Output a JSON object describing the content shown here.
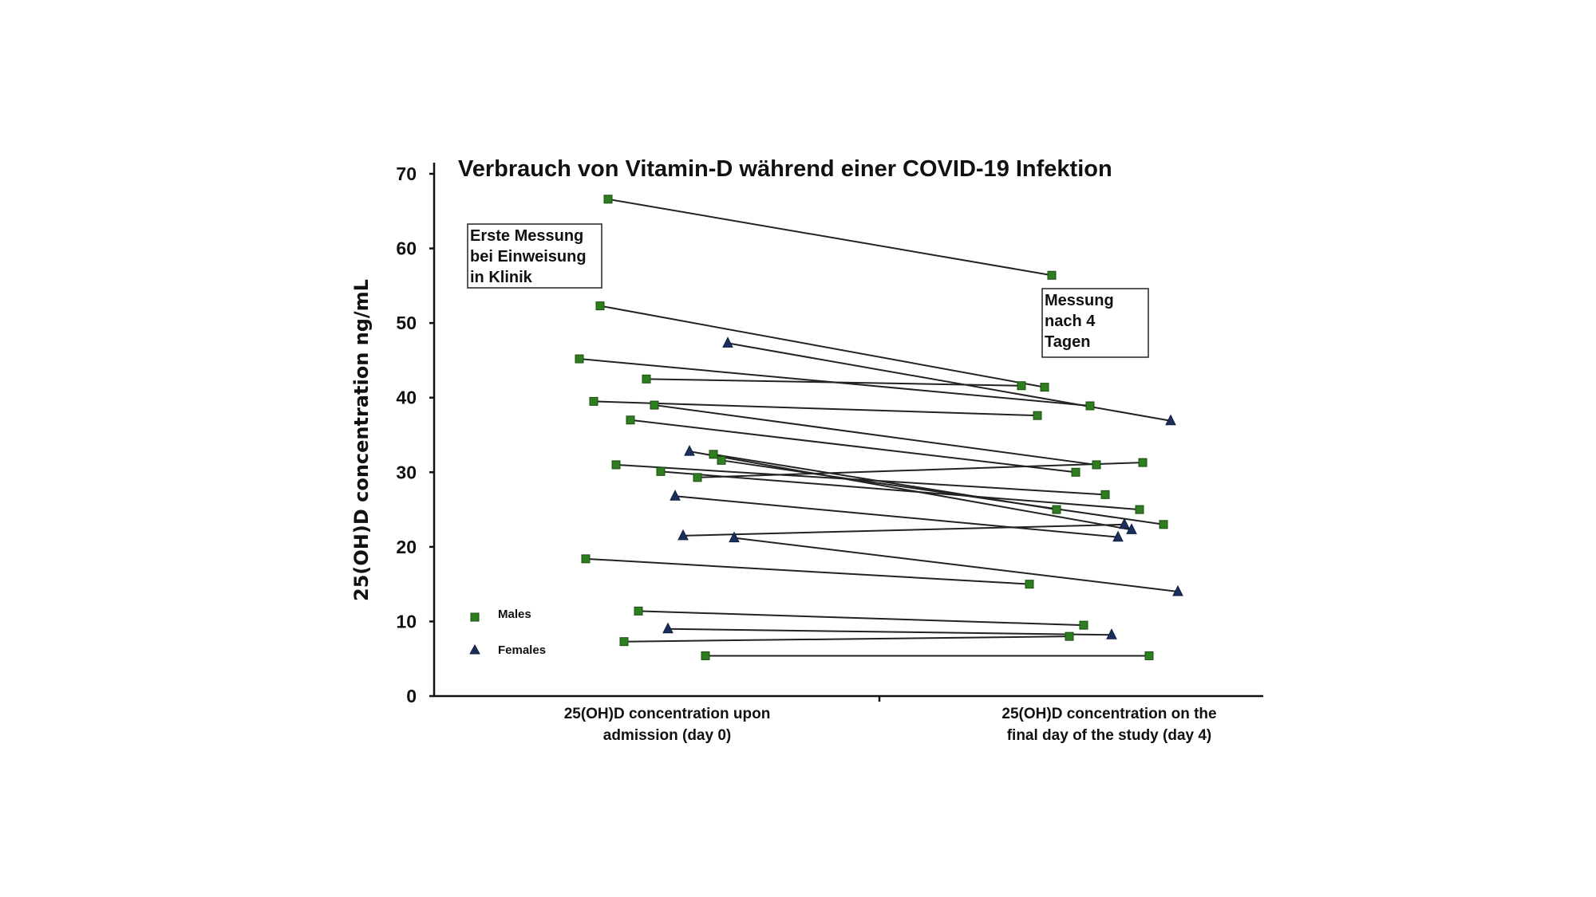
{
  "chart_data": {
    "type": "line",
    "title": "Verbrauch von Vitamin-D während einer COVID-19 Infektion",
    "ylabel": "25(OH)D concentration ng/mL",
    "xlabel": "",
    "ylim": [
      0,
      70
    ],
    "yticks": [
      0,
      10,
      20,
      30,
      40,
      50,
      60,
      70
    ],
    "grid": false,
    "legend_placement": "bottom-left",
    "categories": [
      "25(OH)D concentration upon admission (day 0)",
      "25(OH)D concentration on the final day of the study (day 4)"
    ],
    "category_lines": [
      [
        "25(OH)D concentration upon",
        "admission (day 0)"
      ],
      [
        "25(OH)D concentration on the",
        "final day of the study (day 4)"
      ]
    ],
    "legend": [
      {
        "name": "Males",
        "marker": "square",
        "color": "#2e7d1e"
      },
      {
        "name": "Females",
        "marker": "triangle",
        "color": "#1a2f5c"
      }
    ],
    "annotations": [
      {
        "text_lines": [
          "Erste Messung",
          "bei Einweisung",
          "in Klinik"
        ]
      },
      {
        "text_lines": [
          "Messung",
          "nach 4",
          "Tagen"
        ]
      }
    ],
    "series": [
      {
        "sex": "male",
        "day0": 66.6,
        "day4": 56.4
      },
      {
        "sex": "male",
        "day0": 52.3,
        "day4": 41.4
      },
      {
        "sex": "female",
        "day0": 47.3,
        "day4": 36.9
      },
      {
        "sex": "male",
        "day0": 45.2,
        "day4": 38.9
      },
      {
        "sex": "male",
        "day0": 42.5,
        "day4": 41.6
      },
      {
        "sex": "male",
        "day0": 39.5,
        "day4": 37.6
      },
      {
        "sex": "male",
        "day0": 39.0,
        "day4": 31.0
      },
      {
        "sex": "male",
        "day0": 37.0,
        "day4": 30.0
      },
      {
        "sex": "female",
        "day0": 32.8,
        "day4": 22.3
      },
      {
        "sex": "male",
        "day0": 32.4,
        "day4": 25.0
      },
      {
        "sex": "male",
        "day0": 31.6,
        "day4": 23.0
      },
      {
        "sex": "male",
        "day0": 31.0,
        "day4": 27.0
      },
      {
        "sex": "male",
        "day0": 30.1,
        "day4": 25.0
      },
      {
        "sex": "male",
        "day0": 29.3,
        "day4": 31.3
      },
      {
        "sex": "female",
        "day0": 26.8,
        "day4": 21.3
      },
      {
        "sex": "female",
        "day0": 21.5,
        "day4": 23.0
      },
      {
        "sex": "female",
        "day0": 21.2,
        "day4": 14.0
      },
      {
        "sex": "male",
        "day0": 18.4,
        "day4": 15.0
      },
      {
        "sex": "male",
        "day0": 11.4,
        "day4": 9.5
      },
      {
        "sex": "female",
        "day0": 9.0,
        "day4": 8.2
      },
      {
        "sex": "male",
        "day0": 7.3,
        "day4": 8.0
      },
      {
        "sex": "male",
        "day0": 5.4,
        "day4": 5.4
      }
    ]
  }
}
